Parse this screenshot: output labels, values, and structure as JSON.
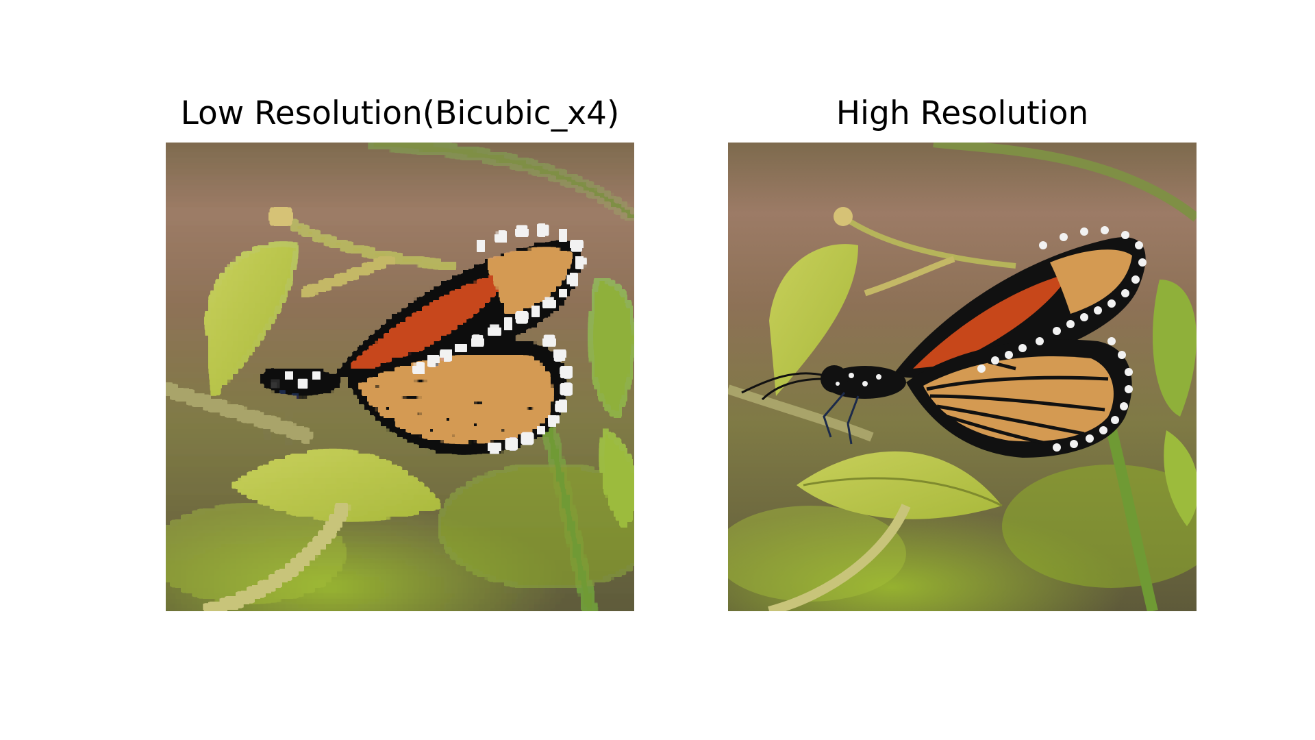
{
  "panels": [
    {
      "title": "Low Resolution(Bicubic_x4)",
      "pixelated": true
    },
    {
      "title": "High Resolution",
      "pixelated": false
    }
  ],
  "colors": {
    "background_brown": "#8d7156",
    "background_dark": "#5e5a3a",
    "leaf_green": "#a9b93c",
    "leaf_light": "#c7cf5a",
    "stem_green": "#7f8f45",
    "wing_orange": "#d49a52",
    "wing_red": "#c7471a",
    "wing_black": "#111111",
    "spot_white": "#f2f2f2"
  }
}
